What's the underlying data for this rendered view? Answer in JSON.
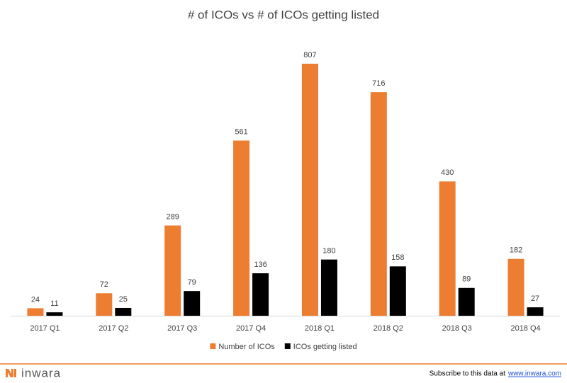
{
  "chart_data": {
    "type": "bar",
    "title": "# of ICOs vs # of ICOs getting listed",
    "categories": [
      "2017 Q1",
      "2017 Q2",
      "2017 Q3",
      "2017 Q4",
      "2018 Q1",
      "2018 Q2",
      "2018 Q3",
      "2018 Q4"
    ],
    "series": [
      {
        "name": "Number of ICOs",
        "color": "#ed7d31",
        "values": [
          24,
          72,
          289,
          561,
          807,
          716,
          430,
          182
        ]
      },
      {
        "name": "ICOs getting listed",
        "color": "#000000",
        "values": [
          11,
          25,
          79,
          136,
          180,
          158,
          89,
          27
        ]
      }
    ],
    "legend": "bottom",
    "data_labels": true
  },
  "footer": {
    "logo": "inwara",
    "subscribe": "Subscribe to this data at",
    "link": "www.inwara.com"
  }
}
